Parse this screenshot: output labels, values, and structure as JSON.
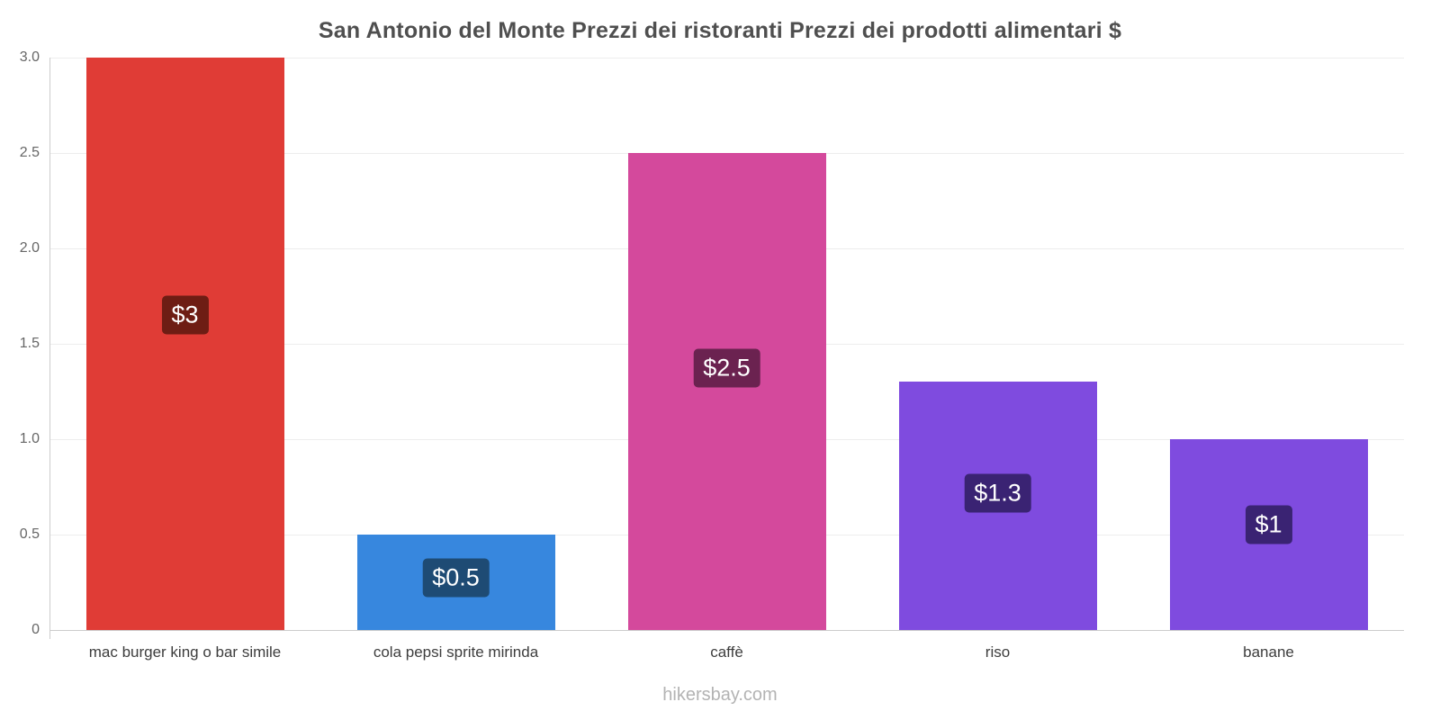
{
  "chart_data": {
    "type": "bar",
    "title": "San Antonio del Monte Prezzi dei ristoranti Prezzi dei prodotti alimentari $",
    "xlabel": "",
    "ylabel": "",
    "ylim": [
      0,
      3.0
    ],
    "yticks": [
      "0",
      "0.5",
      "1.0",
      "1.5",
      "2.0",
      "2.5",
      "3.0"
    ],
    "grid": "horizontal",
    "legend": "none",
    "categories": [
      "mac burger king o bar simile",
      "cola pepsi sprite mirinda",
      "caffè",
      "riso",
      "banane"
    ],
    "values": [
      3.0,
      0.5,
      2.5,
      1.3,
      1.0
    ],
    "value_labels": [
      "$3",
      "$0.5",
      "$2.5",
      "$1.3",
      "$1"
    ],
    "bar_colors": [
      "#E03C36",
      "#3787DE",
      "#D4499C",
      "#7F4BDF",
      "#7F4BDF"
    ],
    "label_bg_colors": [
      "#6E1D14",
      "#1E4B74",
      "#6B2250",
      "#3A2373",
      "#3A2373"
    ],
    "label_text_color": "#ffffff"
  },
  "footer": {
    "watermark": "hikersbay.com"
  }
}
